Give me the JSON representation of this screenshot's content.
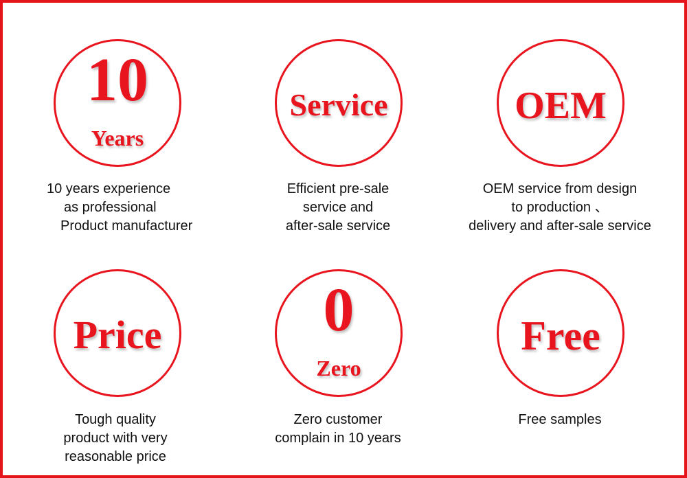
{
  "colors": {
    "accent": "#e8141e",
    "border": "#e5141b"
  },
  "items": [
    {
      "big": "10",
      "small": "Years",
      "caption": [
        "10 years experience",
        "as professional",
        "Product manufacturer"
      ]
    },
    {
      "big": "Service",
      "caption": [
        "Efficient pre-sale",
        "service and",
        "after-sale service"
      ]
    },
    {
      "big": "OEM",
      "caption": [
        "OEM service from design",
        "to production 、",
        "delivery and after-sale service"
      ]
    },
    {
      "big": "Price",
      "caption": [
        "Tough quality",
        "product with very",
        "reasonable price"
      ]
    },
    {
      "big": "0",
      "small": "Zero",
      "caption": [
        "Zero customer",
        "complain in 10 years"
      ]
    },
    {
      "big": "Free",
      "caption": [
        "Free samples"
      ]
    }
  ]
}
